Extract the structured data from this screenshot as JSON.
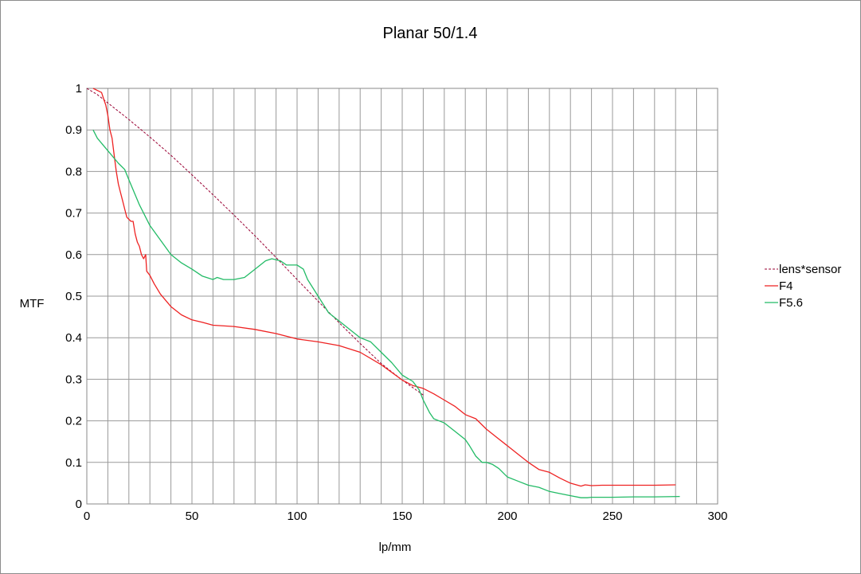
{
  "chart_data": {
    "type": "line",
    "title": "Planar 50/1.4",
    "xlabel": "lp/mm",
    "ylabel": "MTF",
    "xlim": [
      0,
      300
    ],
    "ylim": [
      0,
      1
    ],
    "grid": true,
    "legend_position": "right",
    "x_ticks": [
      "0",
      "50",
      "100",
      "150",
      "200",
      "250",
      "300"
    ],
    "y_ticks": [
      "0",
      "0.1",
      "0.2",
      "0.3",
      "0.4",
      "0.5",
      "0.6",
      "0.7",
      "0.8",
      "0.9",
      "1"
    ],
    "series": [
      {
        "name": "lens*sensor",
        "color": "#990033",
        "dashed": true,
        "points": [
          [
            0,
            1.0
          ],
          [
            5,
            0.985
          ],
          [
            10,
            0.965
          ],
          [
            20,
            0.925
          ],
          [
            30,
            0.883
          ],
          [
            40,
            0.839
          ],
          [
            50,
            0.792
          ],
          [
            60,
            0.744
          ],
          [
            70,
            0.695
          ],
          [
            80,
            0.645
          ],
          [
            90,
            0.593
          ],
          [
            100,
            0.54
          ],
          [
            110,
            0.488
          ],
          [
            120,
            0.436
          ],
          [
            130,
            0.386
          ],
          [
            140,
            0.338
          ],
          [
            150,
            0.298
          ],
          [
            160,
            0.262
          ]
        ]
      },
      {
        "name": "F4",
        "color": "#ee2222",
        "dashed": false,
        "points": [
          [
            3,
            1.0
          ],
          [
            5,
            0.995
          ],
          [
            7,
            0.99
          ],
          [
            8,
            0.975
          ],
          [
            9,
            0.96
          ],
          [
            10,
            0.935
          ],
          [
            11,
            0.9
          ],
          [
            12,
            0.88
          ],
          [
            13,
            0.84
          ],
          [
            14,
            0.8
          ],
          [
            15,
            0.77
          ],
          [
            16,
            0.75
          ],
          [
            17,
            0.73
          ],
          [
            18,
            0.71
          ],
          [
            19,
            0.69
          ],
          [
            20,
            0.685
          ],
          [
            21,
            0.68
          ],
          [
            22,
            0.68
          ],
          [
            23,
            0.65
          ],
          [
            24,
            0.63
          ],
          [
            25,
            0.62
          ],
          [
            26,
            0.6
          ],
          [
            27,
            0.59
          ],
          [
            28,
            0.6
          ],
          [
            28.5,
            0.56
          ],
          [
            30,
            0.55
          ],
          [
            32,
            0.53
          ],
          [
            35,
            0.505
          ],
          [
            40,
            0.475
          ],
          [
            45,
            0.455
          ],
          [
            50,
            0.443
          ],
          [
            55,
            0.437
          ],
          [
            60,
            0.43
          ],
          [
            70,
            0.427
          ],
          [
            80,
            0.42
          ],
          [
            90,
            0.41
          ],
          [
            100,
            0.397
          ],
          [
            110,
            0.39
          ],
          [
            120,
            0.381
          ],
          [
            130,
            0.365
          ],
          [
            140,
            0.335
          ],
          [
            150,
            0.298
          ],
          [
            155,
            0.285
          ],
          [
            160,
            0.278
          ],
          [
            165,
            0.265
          ],
          [
            170,
            0.25
          ],
          [
            175,
            0.235
          ],
          [
            180,
            0.215
          ],
          [
            185,
            0.205
          ],
          [
            190,
            0.18
          ],
          [
            195,
            0.16
          ],
          [
            200,
            0.14
          ],
          [
            205,
            0.12
          ],
          [
            210,
            0.1
          ],
          [
            215,
            0.083
          ],
          [
            220,
            0.076
          ],
          [
            225,
            0.062
          ],
          [
            230,
            0.05
          ],
          [
            235,
            0.043
          ],
          [
            237,
            0.046
          ],
          [
            240,
            0.044
          ],
          [
            245,
            0.045
          ],
          [
            250,
            0.045
          ],
          [
            260,
            0.045
          ],
          [
            270,
            0.045
          ],
          [
            280,
            0.046
          ]
        ]
      },
      {
        "name": "F5.6",
        "color": "#22bb66",
        "dashed": false,
        "points": [
          [
            3,
            0.9
          ],
          [
            5,
            0.88
          ],
          [
            10,
            0.85
          ],
          [
            15,
            0.82
          ],
          [
            18,
            0.805
          ],
          [
            20,
            0.78
          ],
          [
            25,
            0.72
          ],
          [
            30,
            0.67
          ],
          [
            35,
            0.635
          ],
          [
            40,
            0.6
          ],
          [
            45,
            0.58
          ],
          [
            50,
            0.565
          ],
          [
            55,
            0.548
          ],
          [
            60,
            0.54
          ],
          [
            62,
            0.545
          ],
          [
            65,
            0.54
          ],
          [
            70,
            0.54
          ],
          [
            75,
            0.545
          ],
          [
            80,
            0.565
          ],
          [
            85,
            0.585
          ],
          [
            88,
            0.59
          ],
          [
            92,
            0.585
          ],
          [
            95,
            0.575
          ],
          [
            100,
            0.575
          ],
          [
            103,
            0.565
          ],
          [
            105,
            0.54
          ],
          [
            110,
            0.5
          ],
          [
            115,
            0.46
          ],
          [
            120,
            0.44
          ],
          [
            125,
            0.42
          ],
          [
            130,
            0.4
          ],
          [
            135,
            0.39
          ],
          [
            140,
            0.365
          ],
          [
            145,
            0.34
          ],
          [
            150,
            0.31
          ],
          [
            155,
            0.295
          ],
          [
            158,
            0.275
          ],
          [
            160,
            0.25
          ],
          [
            163,
            0.22
          ],
          [
            165,
            0.205
          ],
          [
            170,
            0.195
          ],
          [
            175,
            0.175
          ],
          [
            180,
            0.155
          ],
          [
            182,
            0.14
          ],
          [
            185,
            0.115
          ],
          [
            188,
            0.1
          ],
          [
            190,
            0.1
          ],
          [
            193,
            0.095
          ],
          [
            196,
            0.085
          ],
          [
            200,
            0.065
          ],
          [
            205,
            0.055
          ],
          [
            210,
            0.045
          ],
          [
            215,
            0.04
          ],
          [
            220,
            0.03
          ],
          [
            225,
            0.025
          ],
          [
            230,
            0.02
          ],
          [
            235,
            0.015
          ],
          [
            238,
            0.015
          ],
          [
            240,
            0.016
          ],
          [
            250,
            0.016
          ],
          [
            260,
            0.017
          ],
          [
            270,
            0.017
          ],
          [
            282,
            0.018
          ]
        ]
      }
    ]
  }
}
